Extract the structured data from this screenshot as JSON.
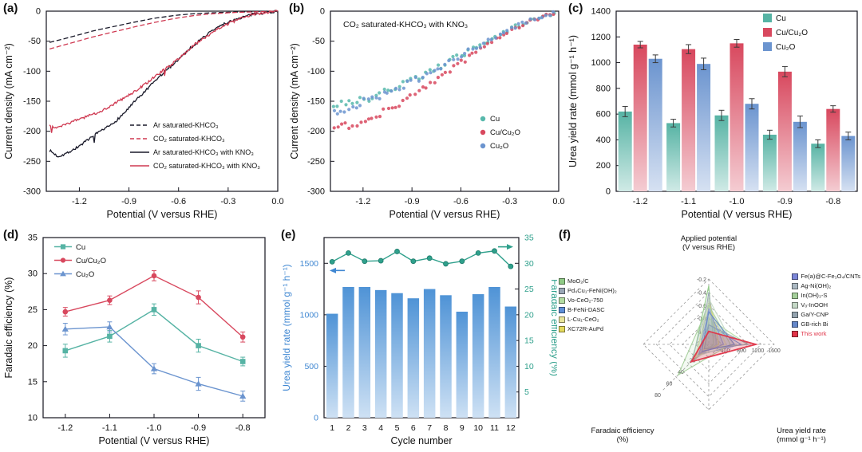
{
  "chart_data": [
    {
      "id": "a",
      "panel_label": "(a)",
      "type": "line",
      "xlabel": "Potential (V versus RHE)",
      "ylabel": "Current density (mA cm⁻²)",
      "xlim": [
        -1.4,
        0
      ],
      "ylim": [
        -300,
        0
      ],
      "xticks": [
        -1.2,
        -0.9,
        -0.6,
        -0.3,
        0.0
      ],
      "xtick_labels": [
        "-1.2",
        "-0.9",
        "-0.6",
        "-0.3",
        "0.0"
      ],
      "yticks": [
        0,
        -50,
        -100,
        -150,
        -200,
        -250,
        -300
      ],
      "ytick_labels": [
        "0",
        "-50",
        "-100",
        "-150",
        "-200",
        "-250",
        "-300"
      ],
      "series": [
        {
          "name": "Ar saturated-KHCO₃",
          "color": "#1a1a2a",
          "dash": true,
          "noise": 0,
          "points": [
            [
              -1.38,
              -52
            ],
            [
              -1.25,
              -43
            ],
            [
              -1.12,
              -33
            ],
            [
              -1.0,
              -26
            ],
            [
              -0.88,
              -19
            ],
            [
              -0.75,
              -12
            ],
            [
              -0.62,
              -7
            ],
            [
              -0.5,
              -4
            ],
            [
              -0.38,
              -2.5
            ],
            [
              -0.25,
              -1.5
            ],
            [
              -0.12,
              -0.7
            ],
            [
              0,
              0
            ]
          ]
        },
        {
          "name": "CO₂ saturated-KHCO₃",
          "color": "#cf3850",
          "dash": true,
          "noise": 0,
          "points": [
            [
              -1.38,
              -63
            ],
            [
              -1.25,
              -53
            ],
            [
              -1.12,
              -43
            ],
            [
              -1.0,
              -35
            ],
            [
              -0.88,
              -27
            ],
            [
              -0.75,
              -19
            ],
            [
              -0.62,
              -12
            ],
            [
              -0.5,
              -7
            ],
            [
              -0.38,
              -4
            ],
            [
              -0.25,
              -2
            ],
            [
              -0.12,
              -1
            ],
            [
              0,
              0
            ]
          ]
        },
        {
          "name": "Ar saturated-KHCO₃ with KNO₃",
          "color": "#1a1a2a",
          "dash": false,
          "noise": 2.2,
          "points": [
            [
              -1.38,
              -232
            ],
            [
              -1.33,
              -242
            ],
            [
              -1.28,
              -237
            ],
            [
              -1.22,
              -228
            ],
            [
              -1.15,
              -215
            ],
            [
              -1.08,
              -202
            ],
            [
              -1.0,
              -188
            ],
            [
              -0.93,
              -170
            ],
            [
              -0.87,
              -152
            ],
            [
              -0.8,
              -133
            ],
            [
              -0.73,
              -113
            ],
            [
              -0.66,
              -95
            ],
            [
              -0.6,
              -80
            ],
            [
              -0.53,
              -62
            ],
            [
              -0.47,
              -48
            ],
            [
              -0.4,
              -33
            ],
            [
              -0.33,
              -22
            ],
            [
              -0.27,
              -15
            ],
            [
              -0.2,
              -9
            ],
            [
              -0.13,
              -4
            ],
            [
              -0.07,
              -2
            ],
            [
              0,
              -0.5
            ]
          ]
        },
        {
          "name": "CO₂ saturated-KHCO₃ with KNO₃",
          "color": "#cf3850",
          "dash": false,
          "noise": 2.2,
          "points": [
            [
              -1.38,
              -189
            ],
            [
              -1.34,
              -196
            ],
            [
              -1.29,
              -189
            ],
            [
              -1.23,
              -183
            ],
            [
              -1.17,
              -177
            ],
            [
              -1.1,
              -170
            ],
            [
              -1.03,
              -161
            ],
            [
              -0.97,
              -151
            ],
            [
              -0.9,
              -140
            ],
            [
              -0.83,
              -127
            ],
            [
              -0.77,
              -115
            ],
            [
              -0.7,
              -100
            ],
            [
              -0.63,
              -86
            ],
            [
              -0.57,
              -72
            ],
            [
              -0.5,
              -55
            ],
            [
              -0.43,
              -42
            ],
            [
              -0.37,
              -30
            ],
            [
              -0.3,
              -21
            ],
            [
              -0.23,
              -13
            ],
            [
              -0.17,
              -7
            ],
            [
              -0.1,
              -3
            ],
            [
              0,
              0
            ]
          ]
        }
      ]
    },
    {
      "id": "b",
      "panel_label": "(b)",
      "type": "scatter",
      "title": "CO₂ saturated-KHCO₃ with KNO₃",
      "xlabel": "Potential (V versus RHE)",
      "ylabel": "Current density (mA cm⁻²)",
      "xlim": [
        -1.4,
        0
      ],
      "ylim": [
        -300,
        0
      ],
      "xticks": [
        -1.2,
        -0.9,
        -0.6,
        -0.3,
        0.0
      ],
      "xtick_labels": [
        "-1.2",
        "-0.9",
        "-0.6",
        "-0.3",
        "0.0"
      ],
      "yticks": [
        0,
        -50,
        -100,
        -150,
        -200,
        -250,
        -300
      ],
      "ytick_labels": [
        "0",
        "-50",
        "-100",
        "-150",
        "-200",
        "-250",
        "-300"
      ],
      "points_per_series": 58,
      "series": [
        {
          "name": "Cu",
          "color": "#57b8ab",
          "anchors": [
            [
              -1.38,
              -158
            ],
            [
              -1.2,
              -148
            ],
            [
              -1.0,
              -128
            ],
            [
              -0.8,
              -102
            ],
            [
              -0.6,
              -73
            ],
            [
              -0.4,
              -44
            ],
            [
              -0.2,
              -17
            ],
            [
              -0.03,
              -3
            ]
          ]
        },
        {
          "name": "Cu/Cu₂O",
          "color": "#d8485e",
          "anchors": [
            [
              -1.38,
              -196
            ],
            [
              -1.2,
              -183
            ],
            [
              -1.0,
              -158
            ],
            [
              -0.8,
              -124
            ],
            [
              -0.6,
              -86
            ],
            [
              -0.4,
              -50
            ],
            [
              -0.2,
              -19
            ],
            [
              -0.03,
              -3
            ]
          ]
        },
        {
          "name": "Cu₂O",
          "color": "#6b94cf",
          "anchors": [
            [
              -1.38,
              -168
            ],
            [
              -1.2,
              -152
            ],
            [
              -1.0,
              -131
            ],
            [
              -0.8,
              -104
            ],
            [
              -0.6,
              -74
            ],
            [
              -0.4,
              -44
            ],
            [
              -0.2,
              -17
            ],
            [
              -0.03,
              -3
            ]
          ]
        }
      ]
    },
    {
      "id": "c",
      "panel_label": "(c)",
      "type": "bar",
      "xlabel": "Potential (V versus RHE)",
      "ylabel": "Urea yield rate (mmol g⁻¹ h⁻¹)",
      "ylim": [
        0,
        1400
      ],
      "yticks": [
        0,
        200,
        400,
        600,
        800,
        1000,
        1200,
        1400
      ],
      "ytick_labels": [
        "0",
        "200",
        "400",
        "600",
        "800",
        "1000",
        "1200",
        "1400"
      ],
      "categories": [
        "-1.2",
        "-1.1",
        "-1.0",
        "-0.9",
        "-0.8"
      ],
      "series": [
        {
          "name": "Cu",
          "color": "#56b3a4",
          "values": [
            620,
            530,
            590,
            440,
            370
          ],
          "errors": [
            40,
            30,
            40,
            35,
            30
          ]
        },
        {
          "name": "Cu/Cu₂O",
          "color": "#d8485e",
          "values": [
            1140,
            1105,
            1150,
            930,
            640
          ],
          "errors": [
            25,
            35,
            30,
            40,
            25
          ]
        },
        {
          "name": "Cu₂O",
          "color": "#6b94cf",
          "values": [
            1030,
            990,
            680,
            540,
            430
          ],
          "errors": [
            30,
            45,
            40,
            45,
            30
          ]
        }
      ]
    },
    {
      "id": "d",
      "panel_label": "(d)",
      "type": "line",
      "xlabel": "Potential (V versus RHE)",
      "ylabel": "Faradaic efficiency (%)",
      "ylim": [
        10,
        35
      ],
      "yticks": [
        10,
        15,
        20,
        25,
        30,
        35
      ],
      "ytick_labels": [
        "10",
        "15",
        "20",
        "25",
        "30",
        "35"
      ],
      "categories": [
        "-1.2",
        "-1.1",
        "-1.0",
        "-0.9",
        "-0.8"
      ],
      "series": [
        {
          "name": "Cu",
          "color": "#56b3a4",
          "marker": "square",
          "values": [
            19.3,
            21.3,
            25.0,
            20.0,
            17.8
          ],
          "errors": [
            0.9,
            0.8,
            0.8,
            0.9,
            0.6
          ]
        },
        {
          "name": "Cu/Cu₂O",
          "color": "#d8485e",
          "marker": "circle",
          "values": [
            24.7,
            26.3,
            29.7,
            26.7,
            21.2
          ],
          "errors": [
            0.6,
            0.6,
            0.7,
            0.9,
            0.7
          ]
        },
        {
          "name": "Cu₂O",
          "color": "#6b94cf",
          "marker": "triangle",
          "values": [
            22.3,
            22.6,
            16.8,
            14.7,
            13.0
          ],
          "errors": [
            0.8,
            0.7,
            0.7,
            0.9,
            0.7
          ]
        }
      ]
    },
    {
      "id": "e",
      "panel_label": "(e)",
      "type": "bar+line",
      "xlabel": "Cycle number",
      "ylabel_left": "Urea yield rate (mmol g⁻¹ h⁻¹)",
      "ylabel_right": "Faradaic efficiency (%)",
      "ylim_left": [
        0,
        1750
      ],
      "yticks_left": [
        0,
        500,
        1000,
        1500
      ],
      "ytick_labels_left": [
        "0",
        "500",
        "1000",
        "1500"
      ],
      "ylim_right": [
        0,
        35
      ],
      "yticks_right": [
        5,
        10,
        15,
        20,
        25,
        30,
        35
      ],
      "ytick_labels_right": [
        "5",
        "10",
        "15",
        "20",
        "25",
        "30",
        "35"
      ],
      "categories": [
        "1",
        "2",
        "3",
        "4",
        "5",
        "6",
        "7",
        "8",
        "9",
        "10",
        "11",
        "12"
      ],
      "bar_series": {
        "name": "Urea yield rate",
        "color": "#4f93d6",
        "values": [
          1010,
          1270,
          1270,
          1240,
          1210,
          1160,
          1250,
          1190,
          1030,
          1200,
          1270,
          1080
        ]
      },
      "line_series": {
        "name": "Faradaic efficiency",
        "color": "#2fa08c",
        "values": [
          30.3,
          32.0,
          30.4,
          30.5,
          32.3,
          30.4,
          31.0,
          29.9,
          30.4,
          32.0,
          32.4,
          29.4
        ]
      },
      "left_axis_color": "#3f87d2",
      "right_axis_color": "#2fa08c"
    },
    {
      "id": "f",
      "panel_label": "(f)",
      "type": "radar",
      "axis_top_line1": "Applied potential",
      "axis_top_line2": "(V versus RHE)",
      "axis_right_line1": "Urea yield rate",
      "axis_right_line2": "(mmol g⁻¹ h⁻¹)",
      "axis_left_line1": "Faradaic efficiency",
      "axis_left_line2": "(%)",
      "ticks_top": [
        "-0.2",
        "-0.4",
        "-0.6",
        "-0.8",
        "-1.0"
      ],
      "ticks_right": [
        "400",
        "800",
        "1200",
        "1600"
      ],
      "ticks_left": [
        "20",
        "40",
        "60",
        "80"
      ],
      "legend_left_count": 6,
      "entries": [
        {
          "name": "MoO₂/C",
          "color": "#8fca86",
          "potential": -0.3,
          "urea": 120,
          "fe": 28
        },
        {
          "name": "Pd₄Cu₁-FeNi(OH)₂",
          "color": "#9aa7b6",
          "potential": -0.4,
          "urea": 200,
          "fe": 16
        },
        {
          "name": "Vo-CeO₂-750",
          "color": "#b4dca2",
          "potential": -0.8,
          "urea": 950,
          "fe": 6
        },
        {
          "name": "B-FeNi-DASC",
          "color": "#5f8fd8",
          "potential": -0.9,
          "urea": 790,
          "fe": 18
        },
        {
          "name": "L-Cu₁-CeO₂",
          "color": "#e8e49a",
          "potential": -0.6,
          "urea": 420,
          "fe": 10
        },
        {
          "name": "XC72R-AuPd",
          "color": "#e3d95c",
          "potential": -0.5,
          "urea": 250,
          "fe": 22
        },
        {
          "name": "Fe(a)@C-Fe₃O₄/CNTs",
          "color": "#7b86d8",
          "potential": -0.65,
          "urea": 360,
          "fe": 16
        },
        {
          "name": "Ag-Ni(OH)₂",
          "color": "#aab8c2",
          "potential": -0.5,
          "urea": 180,
          "fe": 30
        },
        {
          "name": "In(OH)₃-S",
          "color": "#a4cf9a",
          "potential": -0.6,
          "urea": 530,
          "fe": 53
        },
        {
          "name": "Vₒ-InOOH",
          "color": "#c4d8c6",
          "potential": -0.5,
          "urea": 590,
          "fe": 21
        },
        {
          "name": "Ga/Y-CNP",
          "color": "#93a2ae",
          "potential": -0.9,
          "urea": 970,
          "fe": 8
        },
        {
          "name": "GB-rich Bi",
          "color": "#6487c9",
          "potential": -0.7,
          "urea": 630,
          "fe": 12
        },
        {
          "name": "This work",
          "color": "#e03448",
          "text_color": "#e03448",
          "potential": -1.0,
          "urea": 1150,
          "fe": 30
        }
      ]
    }
  ]
}
